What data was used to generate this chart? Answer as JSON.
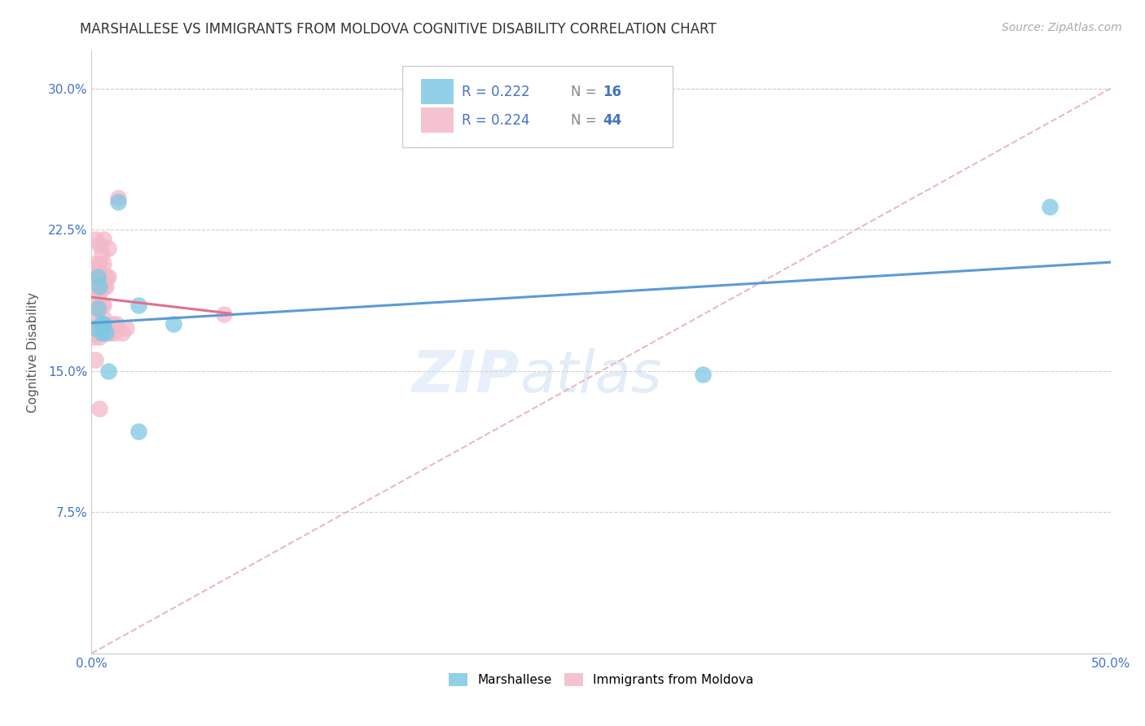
{
  "title": "MARSHALLESE VS IMMIGRANTS FROM MOLDOVA COGNITIVE DISABILITY CORRELATION CHART",
  "source": "Source: ZipAtlas.com",
  "ylabel": "Cognitive Disability",
  "xlabel": "",
  "xlim": [
    0.0,
    0.5
  ],
  "ylim": [
    0.0,
    0.32
  ],
  "xticks": [
    0.0,
    0.1,
    0.2,
    0.3,
    0.4,
    0.5
  ],
  "xticklabels": [
    "0.0%",
    "",
    "",
    "",
    "",
    "50.0%"
  ],
  "yticks": [
    0.075,
    0.15,
    0.225,
    0.3
  ],
  "yticklabels": [
    "7.5%",
    "15.0%",
    "22.5%",
    "30.0%"
  ],
  "grid_color": "#d0d0d0",
  "background_color": "#ffffff",
  "blue_color": "#7ec8e3",
  "pink_color": "#f4b8c8",
  "blue_line_color": "#5b9bd5",
  "pink_line_color": "#e07090",
  "dashed_line_color": "#e8b0c0",
  "watermark_color": "#ddeeff",
  "marshallese_x": [
    0.002,
    0.003,
    0.003,
    0.004,
    0.005,
    0.005,
    0.006,
    0.006,
    0.007,
    0.008,
    0.013,
    0.023,
    0.023,
    0.04,
    0.3,
    0.47
  ],
  "marshallese_y": [
    0.173,
    0.2,
    0.183,
    0.195,
    0.17,
    0.175,
    0.175,
    0.173,
    0.17,
    0.15,
    0.24,
    0.185,
    0.118,
    0.175,
    0.148,
    0.237
  ],
  "moldova_x": [
    0.001,
    0.001,
    0.002,
    0.002,
    0.002,
    0.002,
    0.003,
    0.003,
    0.003,
    0.003,
    0.003,
    0.003,
    0.003,
    0.003,
    0.004,
    0.004,
    0.004,
    0.004,
    0.004,
    0.004,
    0.004,
    0.004,
    0.005,
    0.005,
    0.005,
    0.005,
    0.006,
    0.006,
    0.006,
    0.006,
    0.006,
    0.007,
    0.007,
    0.007,
    0.008,
    0.008,
    0.009,
    0.01,
    0.011,
    0.012,
    0.013,
    0.015,
    0.017,
    0.065
  ],
  "moldova_y": [
    0.173,
    0.168,
    0.22,
    0.207,
    0.2,
    0.156,
    0.205,
    0.2,
    0.197,
    0.19,
    0.185,
    0.178,
    0.173,
    0.17,
    0.217,
    0.207,
    0.2,
    0.192,
    0.183,
    0.175,
    0.168,
    0.13,
    0.212,
    0.197,
    0.185,
    0.175,
    0.22,
    0.207,
    0.195,
    0.185,
    0.178,
    0.2,
    0.195,
    0.172,
    0.215,
    0.2,
    0.17,
    0.175,
    0.17,
    0.175,
    0.242,
    0.17,
    0.173,
    0.18
  ],
  "title_fontsize": 12,
  "axis_label_fontsize": 11,
  "tick_fontsize": 11,
  "legend_r_color": "#4472c4",
  "legend_n_color": "#4472c4"
}
